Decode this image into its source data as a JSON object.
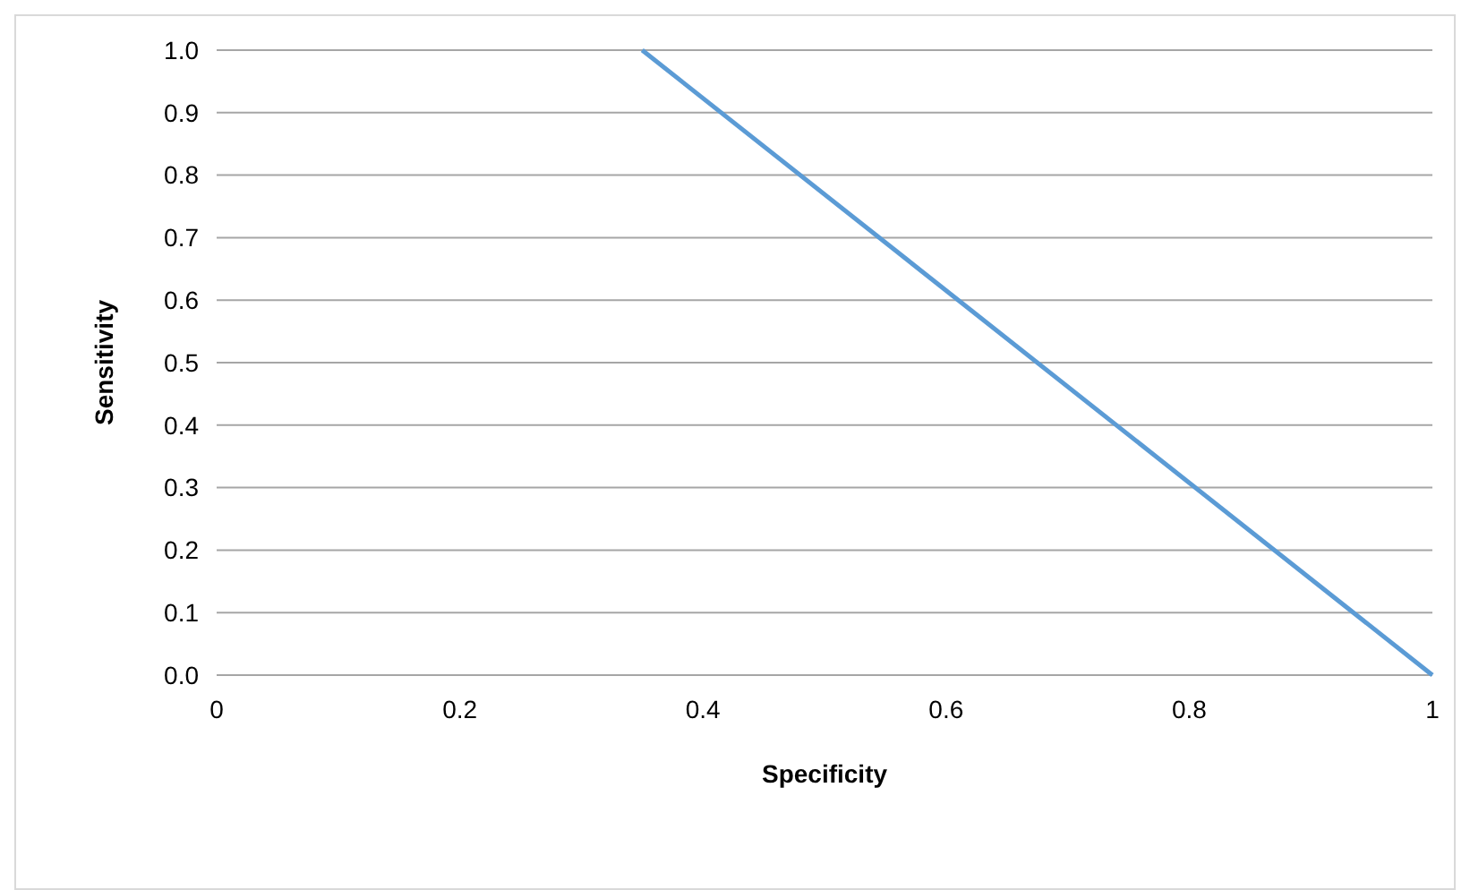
{
  "chart_data": {
    "type": "line",
    "xlabel": "Specificity",
    "ylabel": "Sensitivity",
    "x": [
      0.35,
      1
    ],
    "series": [
      {
        "color": "#5b9bd5",
        "values": [
          1.0,
          0.0
        ]
      }
    ],
    "xlim": [
      0,
      1
    ],
    "xticks": [
      0,
      {
        "value": 0.2,
        "label": "0.2"
      },
      {
        "value": 0.4,
        "label": "0.4"
      },
      {
        "value": 0.6,
        "label": "0.6"
      },
      {
        "value": 0.8,
        "label": "0.8"
      },
      1
    ],
    "ylim": [
      0,
      1
    ],
    "yticks": [
      {
        "value": 0,
        "label": "0.0"
      },
      {
        "value": 0.1,
        "label": "0.1"
      },
      {
        "value": 0.2,
        "label": "0.2"
      },
      {
        "value": 0.3,
        "label": "0.3"
      },
      {
        "value": 0.4,
        "label": "0.4"
      },
      {
        "value": 0.5,
        "label": "0.5"
      },
      {
        "value": 0.6,
        "label": "0.6"
      },
      {
        "value": 0.7,
        "label": "0.7"
      },
      {
        "value": 0.8,
        "label": "0.8"
      },
      {
        "value": 0.9,
        "label": "0.9"
      },
      {
        "value": 1,
        "label": "1.0"
      }
    ],
    "grid": "y",
    "marker": "none",
    "line_style": "solid"
  }
}
